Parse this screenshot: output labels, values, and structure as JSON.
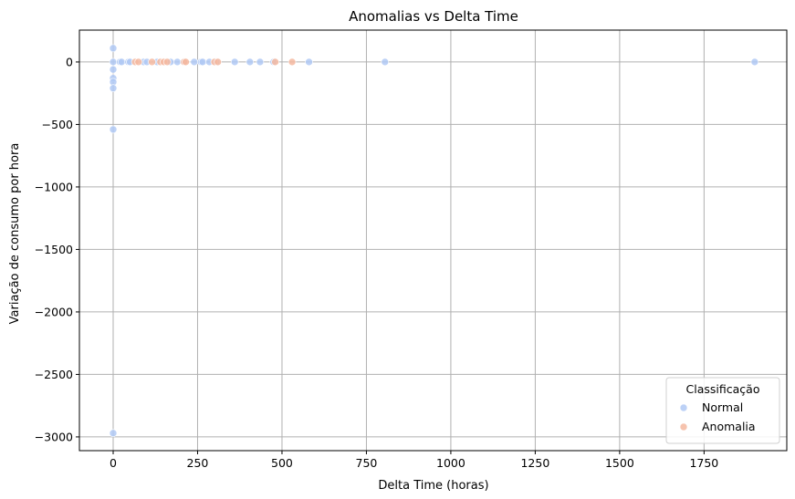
{
  "chart_data": {
    "type": "scatter",
    "title": "Anomalias vs Delta Time",
    "xlabel": "Delta Time (horas)",
    "ylabel": "Variação de consumo por hora",
    "xlim": [
      -100,
      1995
    ],
    "ylim": [
      -3110,
      255
    ],
    "xticks": [
      0,
      250,
      500,
      750,
      1000,
      1250,
      1500,
      1750
    ],
    "xtick_labels": [
      "0",
      "250",
      "500",
      "750",
      "1000",
      "1250",
      "1500",
      "1750"
    ],
    "yticks": [
      0,
      -500,
      -1000,
      -1500,
      -2000,
      -2500,
      -3000
    ],
    "ytick_labels": [
      "0",
      "−500",
      "−1000",
      "−1500",
      "−2000",
      "−2500",
      "−3000"
    ],
    "grid": true,
    "legend": {
      "title": "Classificação",
      "placement": "lower-right"
    },
    "series": [
      {
        "name": "Normal",
        "color": "#b0c9f5",
        "points": [
          [
            0,
            110
          ],
          [
            0,
            0
          ],
          [
            0,
            -60
          ],
          [
            0,
            -130
          ],
          [
            0,
            -160
          ],
          [
            0,
            -210
          ],
          [
            0,
            -540
          ],
          [
            0,
            -2970
          ],
          [
            20,
            0
          ],
          [
            25,
            0
          ],
          [
            45,
            0
          ],
          [
            50,
            0
          ],
          [
            90,
            0
          ],
          [
            100,
            0
          ],
          [
            130,
            0
          ],
          [
            170,
            0
          ],
          [
            190,
            0
          ],
          [
            210,
            0
          ],
          [
            240,
            0
          ],
          [
            260,
            0
          ],
          [
            265,
            0
          ],
          [
            285,
            0
          ],
          [
            305,
            0
          ],
          [
            360,
            0
          ],
          [
            405,
            0
          ],
          [
            435,
            0
          ],
          [
            475,
            0
          ],
          [
            580,
            0
          ],
          [
            805,
            0
          ],
          [
            1900,
            0
          ]
        ]
      },
      {
        "name": "Anomalia",
        "color": "#f5b9a0",
        "points": [
          [
            65,
            0
          ],
          [
            75,
            0
          ],
          [
            115,
            0
          ],
          [
            140,
            0
          ],
          [
            150,
            0
          ],
          [
            160,
            0
          ],
          [
            210,
            0
          ],
          [
            215,
            0
          ],
          [
            300,
            0
          ],
          [
            310,
            0
          ],
          [
            480,
            0
          ],
          [
            530,
            0
          ]
        ]
      }
    ]
  }
}
